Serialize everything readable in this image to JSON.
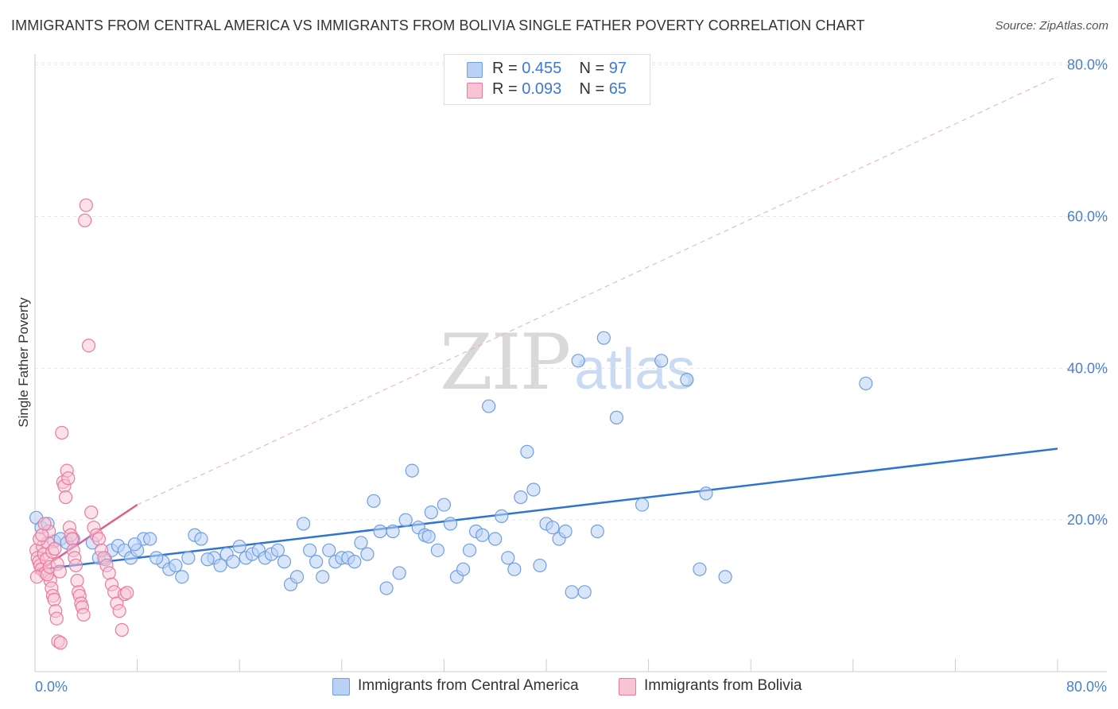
{
  "title": "IMMIGRANTS FROM CENTRAL AMERICA VS IMMIGRANTS FROM BOLIVIA SINGLE FATHER POVERTY CORRELATION CHART",
  "source": "Source: ZipAtlas.com",
  "watermark": {
    "zip": "ZIP",
    "atlas": "atlas"
  },
  "legend": {
    "r_label": "R = ",
    "n_label": "N = ",
    "rows": [
      {
        "r": "0.455",
        "n": "97"
      },
      {
        "r": "0.093",
        "n": "65"
      }
    ]
  },
  "colors": {
    "blue_fill": "#b9d1f5",
    "blue_stroke": "#6f9fe0",
    "blue_line": "#2f74d0",
    "pink_fill": "#f8c3d3",
    "pink_stroke": "#ea7aa0",
    "pink_line": "#e0608c",
    "grid": "#e6e6e6",
    "tick_label": "#4a7fd0"
  },
  "chart_data": {
    "type": "scatter",
    "title": "IMMIGRANTS FROM CENTRAL AMERICA VS IMMIGRANTS FROM BOLIVIA SINGLE FATHER POVERTY CORRELATION CHART",
    "xlabel": "",
    "ylabel": "Single Father Poverty",
    "xlim": [
      0,
      84
    ],
    "ylim": [
      0,
      84
    ],
    "x_tick_labels": [
      {
        "value": 0,
        "label": "0.0%"
      },
      {
        "value": 80,
        "label": "80.0%"
      }
    ],
    "y_tick_labels": [
      {
        "value": 20,
        "label": "20.0%"
      },
      {
        "value": 40,
        "label": "40.0%"
      },
      {
        "value": 60,
        "label": "60.0%"
      },
      {
        "value": 80,
        "label": "80.0%"
      }
    ],
    "x_minor_ticks": [
      8,
      16,
      24,
      32,
      40,
      48,
      56,
      64,
      72,
      80
    ],
    "grid": true,
    "legend_position": "top-center",
    "series": [
      {
        "name": "Immigrants from Central America",
        "color": "blue",
        "r": 0.455,
        "n": 97,
        "trend": {
          "x0": 0,
          "y0": 13.4,
          "x1": 80,
          "y1": 29.4
        },
        "points": [
          [
            0.1,
            20.3
          ],
          [
            0.5,
            19.0
          ],
          [
            1.0,
            19.5
          ],
          [
            1.5,
            17.2
          ],
          [
            2.0,
            17.5
          ],
          [
            2.5,
            17.0
          ],
          [
            3.0,
            17.5
          ],
          [
            4.5,
            17.0
          ],
          [
            5.0,
            15.0
          ],
          [
            5.5,
            14.8
          ],
          [
            6.0,
            16.0
          ],
          [
            6.5,
            16.6
          ],
          [
            7.0,
            16.0
          ],
          [
            7.5,
            15.0
          ],
          [
            8.0,
            16.0
          ],
          [
            8.5,
            17.5
          ],
          [
            9.0,
            17.5
          ],
          [
            10.0,
            14.5
          ],
          [
            10.5,
            13.5
          ],
          [
            11.0,
            14.0
          ],
          [
            11.5,
            12.5
          ],
          [
            12.0,
            15.0
          ],
          [
            12.5,
            18.0
          ],
          [
            13.0,
            17.5
          ],
          [
            14.0,
            15.0
          ],
          [
            14.5,
            14.0
          ],
          [
            15.0,
            15.5
          ],
          [
            15.5,
            14.5
          ],
          [
            16.0,
            16.5
          ],
          [
            16.5,
            15.0
          ],
          [
            17.0,
            15.5
          ],
          [
            17.5,
            16.0
          ],
          [
            18.0,
            15.0
          ],
          [
            18.5,
            15.5
          ],
          [
            19.0,
            16.0
          ],
          [
            19.5,
            14.5
          ],
          [
            20.0,
            11.5
          ],
          [
            20.5,
            12.5
          ],
          [
            21.0,
            19.5
          ],
          [
            21.5,
            16.0
          ],
          [
            22.0,
            14.5
          ],
          [
            22.5,
            12.5
          ],
          [
            23.0,
            16.0
          ],
          [
            23.5,
            14.5
          ],
          [
            24.0,
            15.0
          ],
          [
            24.5,
            15.0
          ],
          [
            25.0,
            14.5
          ],
          [
            25.5,
            17.0
          ],
          [
            26.0,
            15.5
          ],
          [
            26.5,
            22.5
          ],
          [
            27.0,
            18.5
          ],
          [
            27.5,
            11.0
          ],
          [
            28.0,
            18.5
          ],
          [
            28.5,
            13.0
          ],
          [
            29.0,
            20.0
          ],
          [
            29.5,
            26.5
          ],
          [
            30.0,
            19.0
          ],
          [
            30.5,
            18.0
          ],
          [
            31.0,
            21.0
          ],
          [
            31.5,
            16.0
          ],
          [
            32.0,
            22.0
          ],
          [
            32.5,
            19.5
          ],
          [
            33.0,
            12.5
          ],
          [
            33.5,
            13.5
          ],
          [
            34.0,
            16.0
          ],
          [
            34.5,
            18.5
          ],
          [
            35.0,
            18.0
          ],
          [
            35.5,
            35.0
          ],
          [
            36.0,
            17.5
          ],
          [
            36.5,
            20.5
          ],
          [
            37.0,
            15.0
          ],
          [
            37.5,
            13.5
          ],
          [
            38.0,
            23.0
          ],
          [
            38.5,
            29.0
          ],
          [
            39.0,
            24.0
          ],
          [
            39.5,
            14.0
          ],
          [
            40.0,
            19.5
          ],
          [
            40.5,
            19.0
          ],
          [
            41.0,
            17.5
          ],
          [
            41.5,
            18.5
          ],
          [
            42.0,
            10.5
          ],
          [
            42.5,
            41.0
          ],
          [
            43.0,
            10.5
          ],
          [
            44.0,
            18.5
          ],
          [
            44.5,
            44.0
          ],
          [
            45.5,
            33.5
          ],
          [
            47.5,
            22.0
          ],
          [
            49.0,
            41.0
          ],
          [
            51.0,
            38.5
          ],
          [
            52.0,
            13.5
          ],
          [
            52.5,
            23.5
          ],
          [
            54.0,
            12.5
          ],
          [
            65.0,
            38.0
          ],
          [
            13.5,
            14.8
          ],
          [
            9.5,
            15.0
          ],
          [
            7.8,
            16.8
          ],
          [
            30.8,
            17.8
          ]
        ]
      },
      {
        "name": "Immigrants from Bolivia",
        "color": "pink",
        "r": 0.093,
        "n": 65,
        "trend": {
          "x0": 0,
          "y0": 13.0,
          "x1": 8,
          "y1": 22.0
        },
        "points": [
          [
            0.1,
            16.0
          ],
          [
            0.2,
            15.0
          ],
          [
            0.3,
            14.5
          ],
          [
            0.4,
            14.0
          ],
          [
            0.5,
            13.5
          ],
          [
            0.6,
            16.5
          ],
          [
            0.7,
            15.5
          ],
          [
            0.8,
            13.0
          ],
          [
            0.9,
            14.8
          ],
          [
            1.0,
            17.0
          ],
          [
            1.1,
            18.5
          ],
          [
            1.2,
            12.0
          ],
          [
            1.3,
            11.0
          ],
          [
            1.4,
            10.0
          ],
          [
            1.5,
            9.5
          ],
          [
            1.6,
            8.0
          ],
          [
            1.7,
            7.0
          ],
          [
            1.8,
            4.0
          ],
          [
            2.0,
            3.8
          ],
          [
            2.1,
            31.5
          ],
          [
            2.2,
            25.0
          ],
          [
            2.3,
            24.5
          ],
          [
            2.4,
            23.0
          ],
          [
            2.5,
            26.5
          ],
          [
            2.6,
            25.5
          ],
          [
            2.7,
            19.0
          ],
          [
            2.8,
            18.0
          ],
          [
            2.9,
            17.5
          ],
          [
            3.0,
            16.0
          ],
          [
            3.1,
            15.0
          ],
          [
            3.2,
            14.0
          ],
          [
            3.3,
            12.0
          ],
          [
            3.4,
            10.5
          ],
          [
            3.5,
            10.0
          ],
          [
            3.6,
            9.0
          ],
          [
            3.7,
            8.5
          ],
          [
            3.8,
            7.5
          ],
          [
            3.9,
            59.5
          ],
          [
            4.0,
            61.5
          ],
          [
            4.2,
            43.0
          ],
          [
            4.4,
            21.0
          ],
          [
            4.6,
            19.0
          ],
          [
            4.8,
            18.0
          ],
          [
            5.0,
            17.5
          ],
          [
            5.2,
            16.0
          ],
          [
            5.4,
            15.0
          ],
          [
            5.6,
            14.0
          ],
          [
            5.8,
            13.0
          ],
          [
            6.0,
            11.5
          ],
          [
            6.2,
            10.5
          ],
          [
            6.4,
            9.0
          ],
          [
            6.6,
            8.0
          ],
          [
            6.8,
            5.5
          ],
          [
            7.0,
            10.2
          ],
          [
            7.2,
            10.4
          ],
          [
            0.15,
            12.5
          ],
          [
            0.35,
            17.5
          ],
          [
            0.55,
            18.0
          ],
          [
            0.75,
            19.5
          ],
          [
            0.95,
            12.8
          ],
          [
            1.15,
            13.8
          ],
          [
            1.35,
            15.8
          ],
          [
            1.55,
            16.2
          ],
          [
            1.75,
            14.2
          ],
          [
            1.95,
            13.2
          ]
        ]
      }
    ]
  },
  "bottom_legend": [
    "Immigrants from Central America",
    "Immigrants from Bolivia"
  ]
}
